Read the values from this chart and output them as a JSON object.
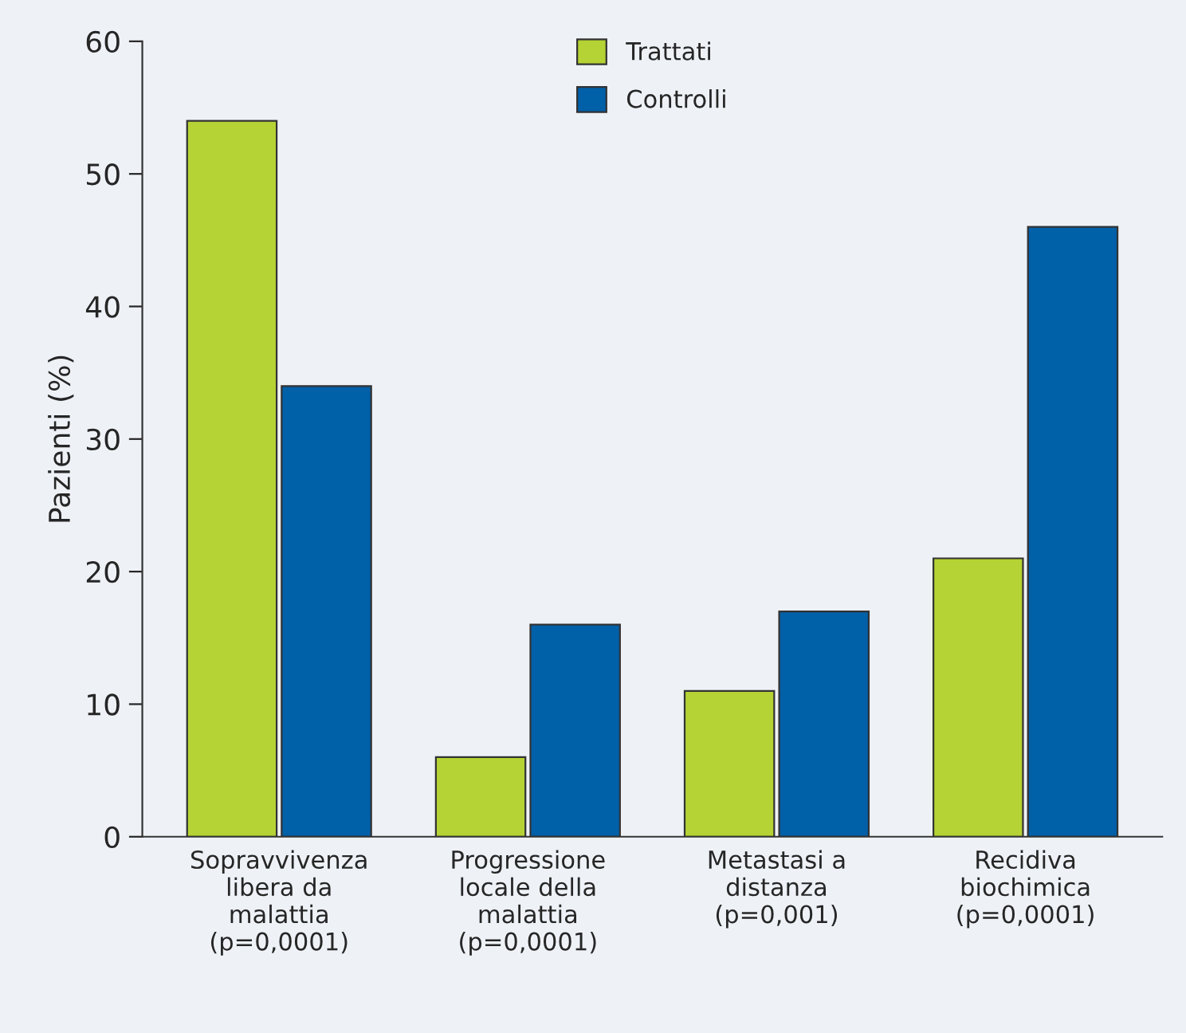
{
  "chart_data": {
    "type": "bar",
    "ylabel": "Pazienti (%)",
    "categories": [
      "Sopravvivenza\nlibera da\nmalattia\n(p=0,0001)",
      "Progressione\nlocale della\nmalattia\n(p=0,0001)",
      "Metastasi a\ndistanza\n(p=0,001)",
      "Recidiva\nbiochimica\n(p=0,0001)"
    ],
    "series": [
      {
        "name": "Trattati",
        "color": "#b5d334",
        "values": [
          54,
          6,
          11,
          21
        ]
      },
      {
        "name": "Controlli",
        "color": "#0060a8",
        "values": [
          34,
          16,
          17,
          46
        ]
      }
    ],
    "ylim": [
      0,
      60
    ],
    "yticks": [
      0,
      10,
      20,
      30,
      40,
      50,
      60
    ],
    "grid": false,
    "legend": "top"
  }
}
